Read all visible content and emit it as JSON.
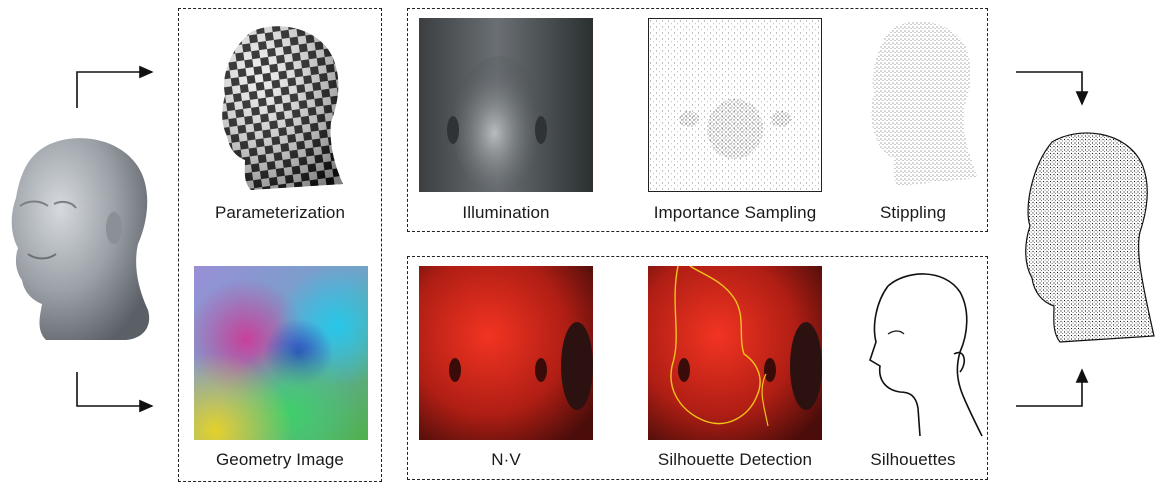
{
  "labels": {
    "parameterization": "Parameterization",
    "geometry_image": "Geometry Image",
    "illumination": "Illumination",
    "importance_sampling": "Importance Sampling",
    "stippling": "Stippling",
    "n_dot_v": "N·V",
    "silhouette_detection": "Silhouette Detection",
    "silhouettes": "Silhouettes"
  },
  "colors": {
    "dashed_border": "#222222",
    "silhouette_curve": "#f0c419",
    "nv_red": "#d8261a"
  }
}
